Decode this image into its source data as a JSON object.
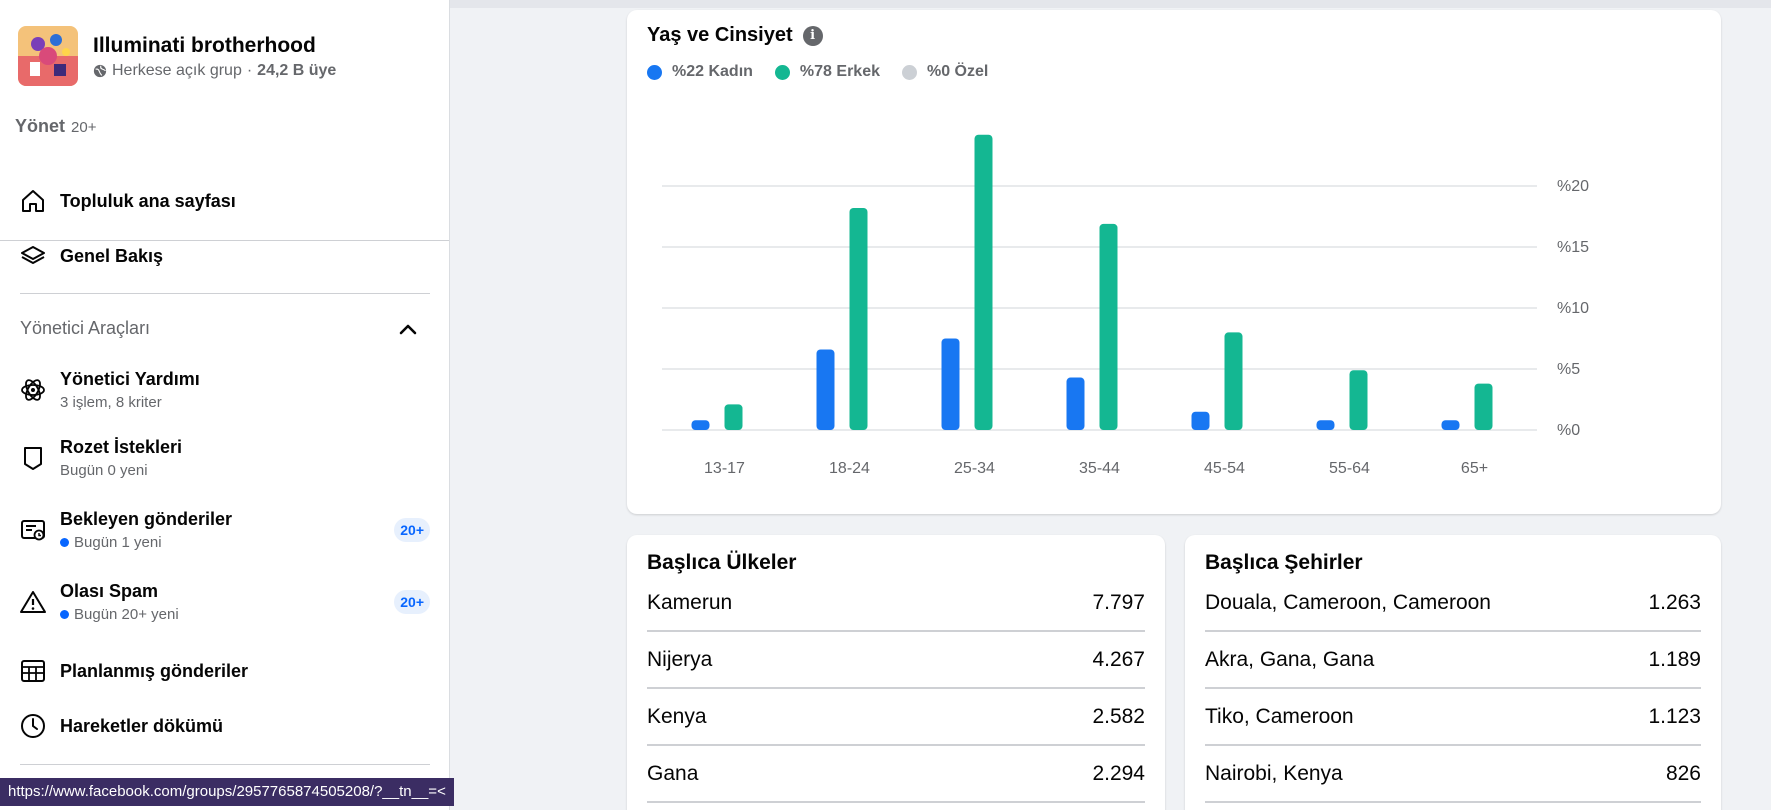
{
  "group": {
    "name": "Illuminati brotherhood",
    "privacy": "Herkese açık grup",
    "separator": "·",
    "members": "24,2 B üye"
  },
  "manage": {
    "label": "Yönet",
    "count": "20+"
  },
  "nav_top": [
    {
      "label": "Topluluk ana sayfası",
      "icon": "home-icon"
    },
    {
      "label": "Genel Bakış",
      "icon": "layers-icon"
    }
  ],
  "admin_tools": {
    "title": "Yönetici Araçları",
    "items": [
      {
        "label": "Yönetici Yardımı",
        "sub": "3 işlem, 8 kriter",
        "icon": "atom-icon",
        "dot": false,
        "badge": ""
      },
      {
        "label": "Rozet İstekleri",
        "sub": "Bugün 0 yeni",
        "icon": "badge-shield-icon",
        "dot": false,
        "badge": ""
      },
      {
        "label": "Bekleyen gönderiler",
        "sub": "Bugün 1 yeni",
        "icon": "pending-posts-icon",
        "dot": true,
        "badge": "20+"
      },
      {
        "label": "Olası Spam",
        "sub": "Bugün 20+ yeni",
        "icon": "warning-icon",
        "dot": true,
        "badge": "20+"
      },
      {
        "label": "Planlanmış gönderiler",
        "sub": "",
        "icon": "calendar-grid-icon",
        "dot": false,
        "badge": ""
      },
      {
        "label": "Hareketler dökümü",
        "sub": "",
        "icon": "clock-icon",
        "dot": false,
        "badge": ""
      }
    ]
  },
  "status_url": "https://www.facebook.com/groups/2957765874505208/?__tn__=<",
  "age_gender": {
    "title": "Yaş ve Cinsiyet",
    "info_icon": "i",
    "legend": [
      {
        "label": "%22 Kadın",
        "color": "#1877f2"
      },
      {
        "label": "%78 Erkek",
        "color": "#14b792"
      },
      {
        "label": "%0 Özel",
        "color": "#ccd0d5"
      }
    ]
  },
  "chart_data": {
    "type": "bar",
    "categories": [
      "13-17",
      "18-24",
      "25-34",
      "35-44",
      "45-54",
      "55-64",
      "65+"
    ],
    "series": [
      {
        "name": "%22 Kadın",
        "color": "#1877f2",
        "values": [
          0.8,
          6.6,
          7.5,
          4.3,
          1.5,
          0.8,
          0.8
        ]
      },
      {
        "name": "%78 Erkek",
        "color": "#14b792",
        "values": [
          2.1,
          18.2,
          24.2,
          16.9,
          8.0,
          4.9,
          3.8
        ]
      }
    ],
    "yticks": [
      "%0",
      "%5",
      "%10",
      "%15",
      "%20"
    ],
    "ylim": [
      0,
      25
    ],
    "grid": true,
    "axis_position": "right"
  },
  "countries": {
    "title": "Başlıca Ülkeler",
    "rows": [
      {
        "name": "Kamerun",
        "value": "7.797"
      },
      {
        "name": "Nijerya",
        "value": "4.267"
      },
      {
        "name": "Kenya",
        "value": "2.582"
      },
      {
        "name": "Gana",
        "value": "2.294"
      }
    ]
  },
  "cities": {
    "title": "Başlıca Şehirler",
    "rows": [
      {
        "name": "Douala, Cameroon, Cameroon",
        "value": "1.263"
      },
      {
        "name": "Akra, Gana, Gana",
        "value": "1.189"
      },
      {
        "name": "Tiko, Cameroon",
        "value": "1.123"
      },
      {
        "name": "Nairobi, Kenya",
        "value": "826"
      }
    ]
  }
}
